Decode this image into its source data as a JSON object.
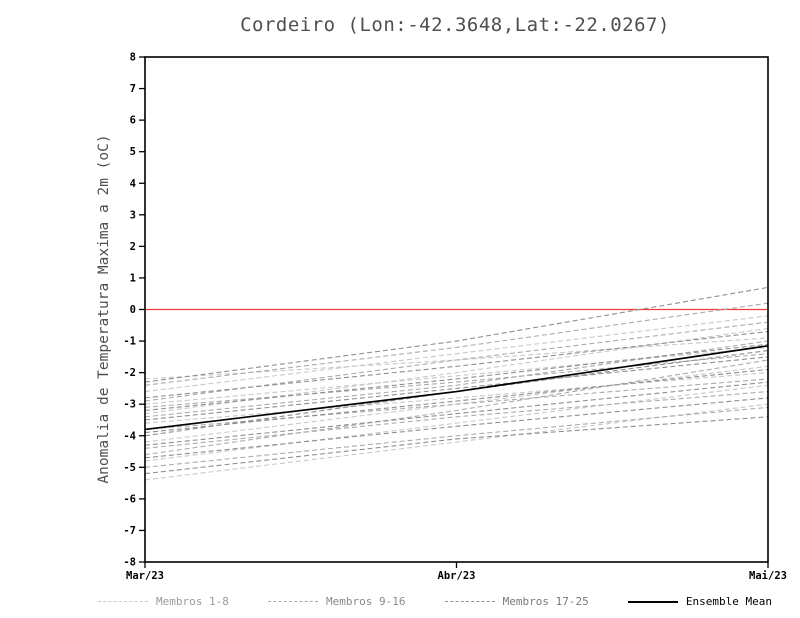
{
  "title": "Cordeiro (Lon:-42.3648,Lat:-22.0267)",
  "y_axis_label": "Anomalia de Temperatura Maxima a 2m (oC)",
  "chart_data": {
    "type": "line",
    "title": "Cordeiro (Lon:-42.3648,Lat:-22.0267)",
    "xlabel": "",
    "ylabel": "Anomalia de Temperatura Maxima a 2m (oC)",
    "ylim": [
      -8,
      8
    ],
    "ytick_step": 1,
    "x_range": [
      0,
      2
    ],
    "x_ticks": [
      {
        "pos": 0,
        "label": "Mar/23"
      },
      {
        "pos": 1,
        "label": "Abr/23"
      },
      {
        "pos": 2,
        "label": "Mai/23"
      }
    ],
    "grid": false,
    "axis_color": "#000000",
    "zero_line": {
      "value": 0,
      "color": "#f23b3b"
    },
    "groups": [
      {
        "name": "Membros 1-8",
        "color": "#c9c9c9"
      },
      {
        "name": "Membros 9-16",
        "color": "#ababab"
      },
      {
        "name": "Membros 17-25",
        "color": "#8f8f8f"
      }
    ],
    "members": [
      {
        "name": "Membro 1",
        "group": 0,
        "values": [
          -2.2,
          -1.6,
          -0.9
        ]
      },
      {
        "name": "Membro 2",
        "group": 0,
        "values": [
          -3.0,
          -2.1,
          -1.2
        ]
      },
      {
        "name": "Membro 3",
        "group": 0,
        "values": [
          -3.6,
          -2.8,
          -2.0
        ]
      },
      {
        "name": "Membro 4",
        "group": 0,
        "values": [
          -4.2,
          -3.0,
          -1.8
        ]
      },
      {
        "name": "Membro 5",
        "group": 0,
        "values": [
          -4.8,
          -3.6,
          -2.4
        ]
      },
      {
        "name": "Membro 6",
        "group": 0,
        "values": [
          -5.4,
          -4.2,
          -3.0
        ]
      },
      {
        "name": "Membro 7",
        "group": 0,
        "values": [
          -3.3,
          -2.0,
          -0.6
        ]
      },
      {
        "name": "Membro 8",
        "group": 0,
        "values": [
          -2.6,
          -1.4,
          -0.2
        ]
      },
      {
        "name": "Membro 9",
        "group": 1,
        "values": [
          -2.4,
          -1.2,
          0.2
        ]
      },
      {
        "name": "Membro 10",
        "group": 1,
        "values": [
          -3.1,
          -2.3,
          -1.4
        ]
      },
      {
        "name": "Membro 11",
        "group": 1,
        "values": [
          -3.8,
          -3.0,
          -2.2
        ]
      },
      {
        "name": "Membro 12",
        "group": 1,
        "values": [
          -4.4,
          -3.4,
          -2.6
        ]
      },
      {
        "name": "Membro 13",
        "group": 1,
        "values": [
          -5.0,
          -4.0,
          -3.1
        ]
      },
      {
        "name": "Membro 14",
        "group": 1,
        "values": [
          -4.6,
          -3.2,
          -1.6
        ]
      },
      {
        "name": "Membro 15",
        "group": 1,
        "values": [
          -3.4,
          -2.4,
          -1.0
        ]
      },
      {
        "name": "Membro 16",
        "group": 1,
        "values": [
          -2.9,
          -1.6,
          -0.4
        ]
      },
      {
        "name": "Membro 17",
        "group": 2,
        "values": [
          -2.3,
          -1.0,
          0.7
        ]
      },
      {
        "name": "Membro 18",
        "group": 2,
        "values": [
          -3.2,
          -2.2,
          -1.1
        ]
      },
      {
        "name": "Membro 19",
        "group": 2,
        "values": [
          -3.9,
          -2.9,
          -1.9
        ]
      },
      {
        "name": "Membro 20",
        "group": 2,
        "values": [
          -4.3,
          -3.3,
          -2.3
        ]
      },
      {
        "name": "Membro 21",
        "group": 2,
        "values": [
          -5.2,
          -4.1,
          -3.4
        ]
      },
      {
        "name": "Membro 22",
        "group": 2,
        "values": [
          -4.0,
          -2.6,
          -1.3
        ]
      },
      {
        "name": "Membro 23",
        "group": 2,
        "values": [
          -3.5,
          -2.5,
          -1.5
        ]
      },
      {
        "name": "Membro 24",
        "group": 2,
        "values": [
          -2.8,
          -1.8,
          -0.7
        ]
      },
      {
        "name": "Membro 25",
        "group": 2,
        "values": [
          -4.7,
          -3.7,
          -2.8
        ]
      }
    ],
    "ensemble_mean": {
      "label": "Ensemble Mean",
      "color": "#000000",
      "values": [
        -3.8,
        -2.6,
        -1.15
      ]
    },
    "legend": [
      {
        "label": "Membros 1-8",
        "color": "#c9c9c9",
        "label_color": "#9a9a9a",
        "dash": true
      },
      {
        "label": "Membros 9-16",
        "color": "#ababab",
        "label_color": "#8a8a8a",
        "dash": true
      },
      {
        "label": "Membros 17-25",
        "color": "#8f8f8f",
        "label_color": "#7a7a7a",
        "dash": true
      },
      {
        "label": "Ensemble Mean",
        "color": "#000000",
        "label_color": "#000000",
        "dash": false
      }
    ],
    "legend_position": "bottom"
  }
}
